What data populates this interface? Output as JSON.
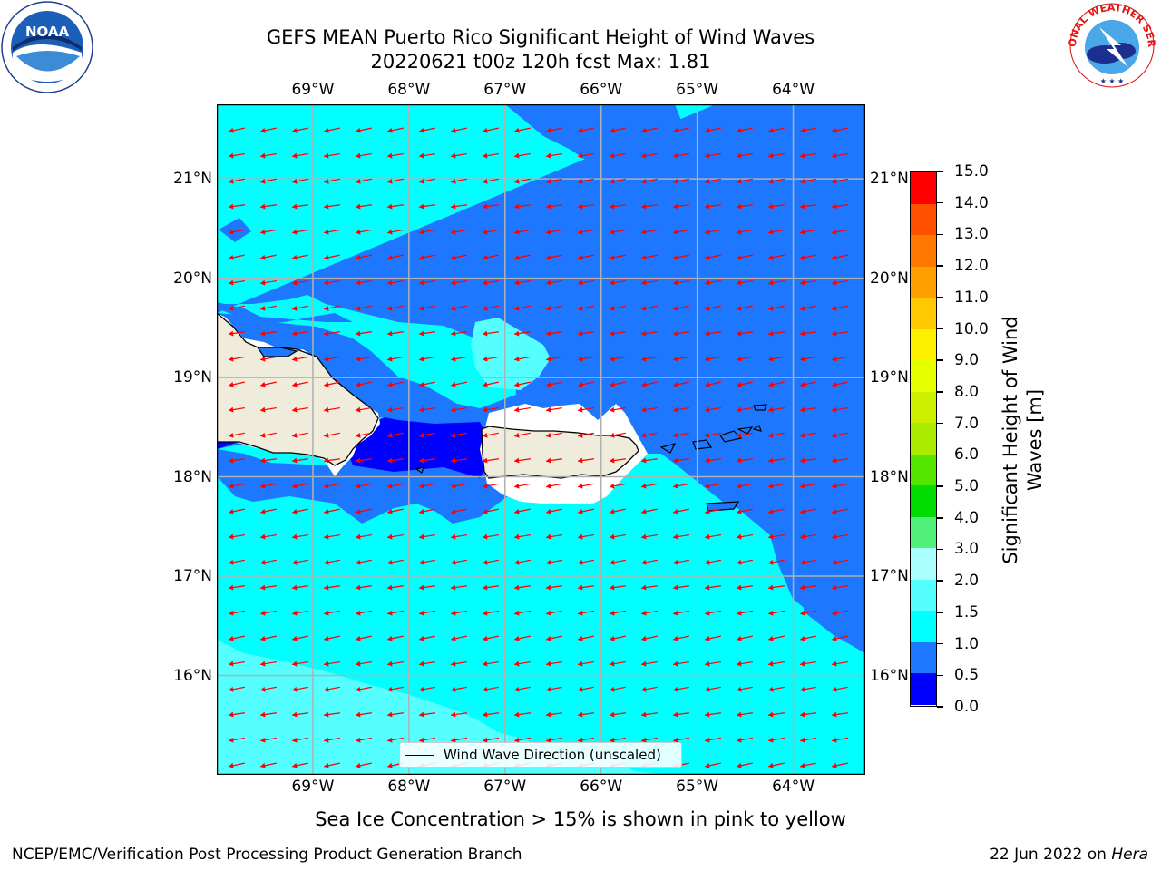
{
  "title": {
    "line1": "GEFS MEAN Puerto Rico Significant Height of Wind Waves",
    "line2": "20220621 t00z 120h fcst   Max: 1.81"
  },
  "axes": {
    "lon_labels": [
      "69°W",
      "68°W",
      "67°W",
      "66°W",
      "65°W",
      "64°W"
    ],
    "lon_values": [
      -69,
      -68,
      -67,
      -66,
      -65,
      -64
    ],
    "lat_labels": [
      "21°N",
      "20°N",
      "19°N",
      "18°N",
      "17°N",
      "16°N"
    ],
    "lat_values": [
      21,
      20,
      19,
      18,
      17,
      16
    ],
    "lon_range": [
      -70.0,
      -63.25
    ],
    "lat_range": [
      15.0,
      21.75
    ],
    "grid": true
  },
  "legend": {
    "label": "Wind Wave Direction (unscaled)",
    "position": "bottom-center"
  },
  "colorbar": {
    "label": "Significant Height of Wind Waves [m]",
    "ticks": [
      "0.0",
      "0.5",
      "1.0",
      "1.5",
      "2.0",
      "3.0",
      "4.0",
      "5.0",
      "6.0",
      "7.0",
      "8.0",
      "9.0",
      "10.0",
      "11.0",
      "12.0",
      "13.0",
      "14.0",
      "15.0"
    ],
    "colors": [
      "#0000ff",
      "#1e78ff",
      "#00ffff",
      "#55ffff",
      "#aaffff",
      "#50f07a",
      "#00dc00",
      "#55e600",
      "#aaec00",
      "#cdf000",
      "#e6ff00",
      "#fff000",
      "#ffc800",
      "#ffa000",
      "#ff7800",
      "#ff5000",
      "#ff0000"
    ]
  },
  "arrows": {
    "color": "#ff0000",
    "direction": "toward-WSW"
  },
  "footer": {
    "sea_ice_note": "Sea Ice Concentration > 15% is shown in pink to yellow",
    "left": "NCEP/EMC/Verification Post Processing Product Generation Branch",
    "date": "22 Jun 2022 on ",
    "machine": "Hera"
  },
  "logos": {
    "noaa": "NOAA",
    "nws": "NATIONAL WEATHER SERVICE"
  }
}
